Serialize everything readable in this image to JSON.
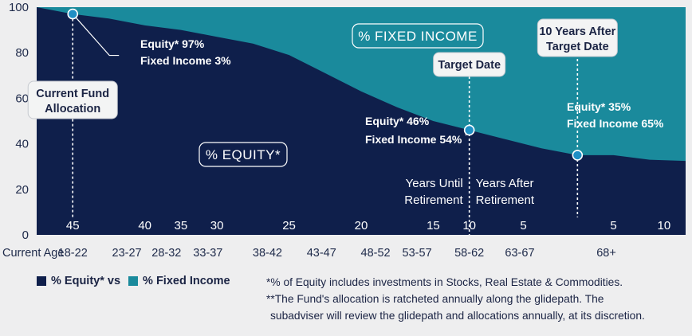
{
  "chart_data": {
    "type": "area",
    "ylim": [
      0,
      100
    ],
    "y_ticks": [
      "100",
      "80",
      "60",
      "40",
      "20",
      "0"
    ],
    "x_axis_label": "Current Age",
    "age_groups": [
      "18-22",
      "23-27",
      "28-32",
      "33-37",
      "38-42",
      "43-47",
      "48-52",
      "53-57",
      "58-62",
      "63-67",
      "68+"
    ],
    "years_until_labels": [
      "45",
      "40",
      "35",
      "30",
      "25",
      "20",
      "15",
      "10",
      "5"
    ],
    "years_after_labels": [
      "5",
      "10"
    ],
    "series": [
      {
        "name": "% Equity*",
        "color": "#0f1f4b",
        "points": [
          [
            0,
            100
          ],
          [
            1,
            97
          ],
          [
            2,
            95
          ],
          [
            3,
            92
          ],
          [
            4,
            90
          ],
          [
            5,
            87
          ],
          [
            6,
            84
          ],
          [
            7,
            79
          ],
          [
            8,
            71
          ],
          [
            9,
            63
          ],
          [
            10,
            56
          ],
          [
            11,
            50
          ],
          [
            12,
            46
          ],
          [
            13,
            42
          ],
          [
            14,
            38
          ],
          [
            15,
            35
          ],
          [
            16,
            35
          ],
          [
            17,
            33
          ],
          [
            18,
            32.5
          ]
        ]
      },
      {
        "name": "% Fixed Income",
        "color": "#1a8a9c"
      }
    ],
    "markers": [
      {
        "x": 1,
        "y": 97,
        "equity_text": "Equity* 97%",
        "fixed_text": "Fixed Income 3%"
      },
      {
        "x": 12,
        "y": 46,
        "equity_text": "Equity* 46%",
        "fixed_text": "Fixed Income 54%"
      },
      {
        "x": 15,
        "y": 35,
        "equity_text": "Equity* 35%",
        "fixed_text": "Fixed Income 65%"
      }
    ],
    "callouts": {
      "current": [
        "Current Fund",
        "Allocation"
      ],
      "target": [
        "Target Date"
      ],
      "after": [
        "10 Years After",
        "Target Date"
      ]
    },
    "region_labels": {
      "equity": "% EQUITY*",
      "fixed": "% FIXED INCOME"
    },
    "phase_labels": {
      "until": [
        "Years Until",
        "Retirement"
      ],
      "after": [
        "Years After",
        "Retirement"
      ]
    }
  },
  "legend": {
    "equity_label": "% Equity* vs",
    "fixed_label": "% Fixed Income",
    "equity_color": "#0f1f4b",
    "fixed_color": "#1a8a9c"
  },
  "footnotes": {
    "note1": "*% of Equity includes investments in Stocks, Real Estate & Commodities.",
    "note2": "**The Fund's allocation is ratcheted annually along the glidepath. The",
    "note3": "subadviser will review the glidepath and allocations annually, at its discretion."
  }
}
